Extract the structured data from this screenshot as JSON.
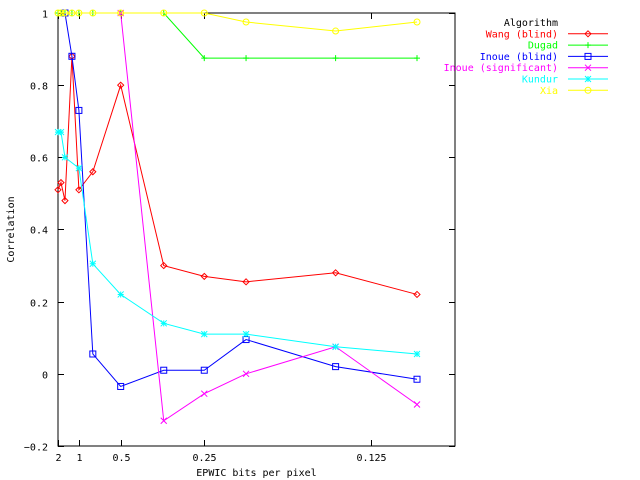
{
  "chart_data": {
    "type": "line",
    "title": "",
    "xlabel": "EPWIC bits per pixel",
    "ylabel": "Correlation",
    "x_scale": "reciprocal",
    "xlim": [
      2,
      0.1
    ],
    "ylim": [
      -0.2,
      1
    ],
    "x_ticks": [
      {
        "value": 2,
        "label": "2"
      },
      {
        "value": 1,
        "label": "1"
      },
      {
        "value": 0.5,
        "label": "0.5"
      },
      {
        "value": 0.25,
        "label": "0.25"
      },
      {
        "value": 0.125,
        "label": "0.125"
      }
    ],
    "y_ticks": [
      {
        "value": -0.2,
        "label": "−0.2"
      },
      {
        "value": 0,
        "label": "0"
      },
      {
        "value": 0.2,
        "label": "0.2"
      },
      {
        "value": 0.4,
        "label": "0.4"
      },
      {
        "value": 0.6,
        "label": "0.6"
      },
      {
        "value": 0.8,
        "label": "0.8"
      },
      {
        "value": 1,
        "label": "1"
      }
    ],
    "grid": false,
    "legend": {
      "title": "Algorithm",
      "position": "right"
    },
    "x": [
      2,
      1.75,
      1.5,
      1.2,
      1,
      0.75,
      0.5,
      0.33,
      0.25,
      0.2,
      0.14,
      0.11
    ],
    "series": [
      {
        "name": "Wang (blind)",
        "color": "#ff0000",
        "marker": "diamond",
        "x": [
          2,
          1.75,
          1.5,
          1.2,
          1,
          0.75,
          0.5,
          0.33,
          0.25,
          0.2,
          0.14,
          0.11
        ],
        "values": [
          0.51,
          0.53,
          0.48,
          0.88,
          0.51,
          0.56,
          0.8,
          0.3,
          0.27,
          0.255,
          0.28,
          0.22
        ]
      },
      {
        "name": "Dugad",
        "color": "#00ff00",
        "marker": "plus",
        "x": [
          2,
          1.75,
          1.5,
          1.2,
          1,
          0.75,
          0.5,
          0.33,
          0.25,
          0.2,
          0.14,
          0.11
        ],
        "values": [
          1,
          1,
          1,
          1,
          1,
          1,
          1,
          1,
          0.875,
          0.875,
          0.875,
          0.875
        ]
      },
      {
        "name": "Inoue (blind)",
        "color": "#0000ff",
        "marker": "square",
        "x": [
          1.5,
          1.2,
          1,
          0.75,
          0.5,
          0.33,
          0.25,
          0.2,
          0.14,
          0.11
        ],
        "values": [
          1,
          0.88,
          0.73,
          0.055,
          -0.035,
          0.01,
          0.01,
          0.095,
          0.02,
          -0.015
        ]
      },
      {
        "name": "Inoue (significant)",
        "color": "#ff00ff",
        "marker": "cross",
        "x": [
          0.5,
          0.33,
          0.25,
          0.2,
          0.14,
          0.11
        ],
        "values": [
          1,
          -0.13,
          -0.055,
          0.0,
          0.075,
          -0.085
        ]
      },
      {
        "name": "Kundur",
        "color": "#00ffff",
        "marker": "star",
        "x": [
          2,
          1.75,
          1.5,
          1,
          0.75,
          0.5,
          0.33,
          0.25,
          0.2,
          0.14,
          0.11
        ],
        "values": [
          0.67,
          0.67,
          0.6,
          0.57,
          0.305,
          0.22,
          0.14,
          0.11,
          0.11,
          0.075,
          0.055
        ]
      },
      {
        "name": "Xia",
        "color": "#ffff00",
        "marker": "circle",
        "x": [
          2,
          1.75,
          1.5,
          1.2,
          1,
          0.75,
          0.5,
          0.33,
          0.25,
          0.2,
          0.14,
          0.11
        ],
        "values": [
          1,
          1,
          1,
          1,
          1,
          1,
          1,
          1,
          1,
          0.975,
          0.95,
          0.975
        ]
      }
    ]
  }
}
